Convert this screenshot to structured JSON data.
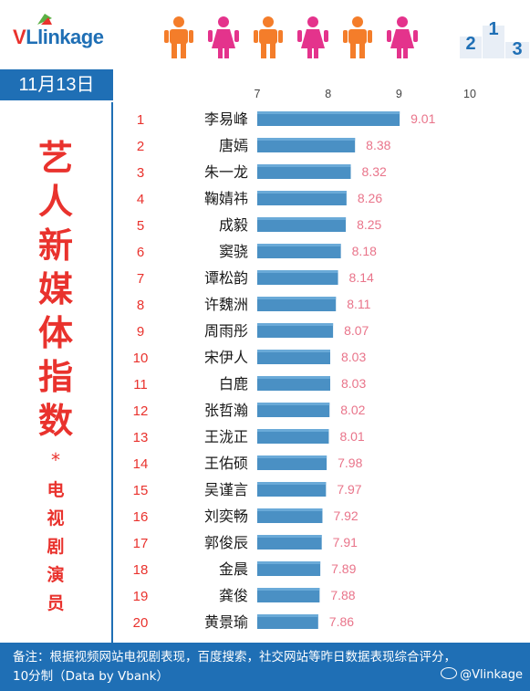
{
  "header": {
    "logo_v": "V",
    "logo_rest": "Llinkage",
    "podium": [
      "2",
      "1",
      "3"
    ]
  },
  "date": "11月13日",
  "left_panel": {
    "title_chars": [
      "艺",
      "人",
      "新",
      "媒",
      "体",
      "指",
      "数"
    ],
    "star": "*",
    "subtitle_chars": [
      "电",
      "视",
      "剧",
      "演",
      "员"
    ]
  },
  "footer": {
    "note_line1": "备注：根据视频网站电视剧表现，百度搜索，社交网站等昨日数据表现综合评分，",
    "note_line2": "10分制（Data by Vbank）",
    "weibo": "@Vlinkage"
  },
  "colors": {
    "bar": "#4a90c4",
    "bar_light": "#6aaad8",
    "accent_red": "#e9322d",
    "brand_blue": "#1f6fb5",
    "value_pink": "#e9748a",
    "male_icon": "#f47d2a",
    "female_icon": "#e4338c"
  },
  "chart_data": {
    "type": "bar",
    "orientation": "horizontal",
    "xlim": [
      7,
      10
    ],
    "x_ticks": [
      "7",
      "8",
      "9",
      "10"
    ],
    "ranks": [
      "1",
      "2",
      "3",
      "4",
      "5",
      "6",
      "7",
      "8",
      "9",
      "10",
      "11",
      "12",
      "13",
      "14",
      "15",
      "16",
      "17",
      "18",
      "19",
      "20"
    ],
    "categories": [
      "李易峰",
      "唐嫣",
      "朱一龙",
      "鞠婧祎",
      "成毅",
      "窦骁",
      "谭松韵",
      "许魏洲",
      "周雨彤",
      "宋伊人",
      "白鹿",
      "张哲瀚",
      "王泷正",
      "王佑硕",
      "吴谨言",
      "刘奕畅",
      "郭俊辰",
      "金晨",
      "龚俊",
      "黄景瑜"
    ],
    "values": [
      9.01,
      8.38,
      8.32,
      8.26,
      8.25,
      8.18,
      8.14,
      8.11,
      8.07,
      8.03,
      8.03,
      8.02,
      8.01,
      7.98,
      7.97,
      7.92,
      7.91,
      7.89,
      7.88,
      7.86
    ],
    "value_labels": [
      "9.01",
      "8.38",
      "8.32",
      "8.26",
      "8.25",
      "8.18",
      "8.14",
      "8.11",
      "8.07",
      "8.03",
      "8.03",
      "8.02",
      "8.01",
      "7.98",
      "7.97",
      "7.92",
      "7.91",
      "7.89",
      "7.88",
      "7.86"
    ]
  }
}
